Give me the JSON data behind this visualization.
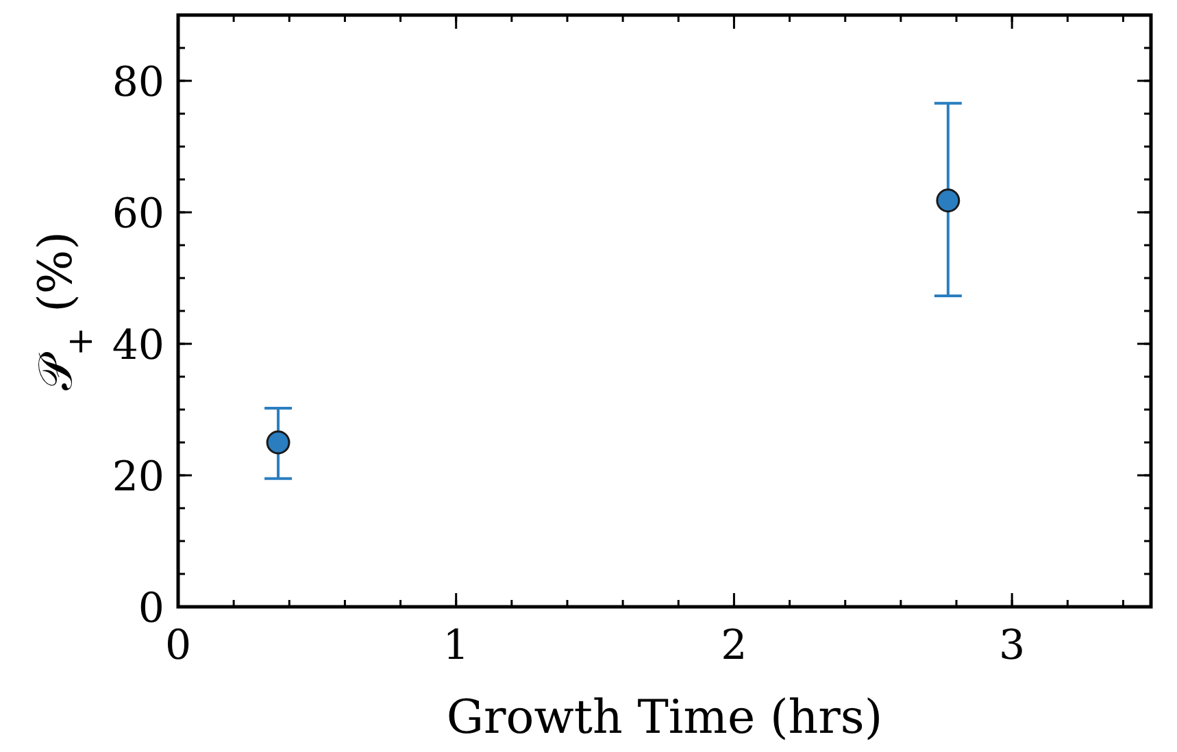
{
  "chart_data": {
    "type": "scatter",
    "xlabel": "Growth Time (hrs)",
    "ylabel": "𝒫$_{+}$ (%)",
    "x": [
      0.36,
      2.77
    ],
    "series": [
      {
        "color": "#2a7ec0",
        "values": [
          25,
          61.8
        ],
        "errors": [
          [
            19.5,
            30.2
          ],
          [
            47.3,
            76.6
          ]
        ]
      }
    ],
    "xlim": [
      0,
      3.5
    ],
    "xticks": [
      0,
      1,
      2,
      3
    ],
    "ylim": [
      0,
      90
    ],
    "yticks": [
      0,
      20,
      40,
      60,
      80
    ],
    "marker": "circle",
    "grid": false
  }
}
